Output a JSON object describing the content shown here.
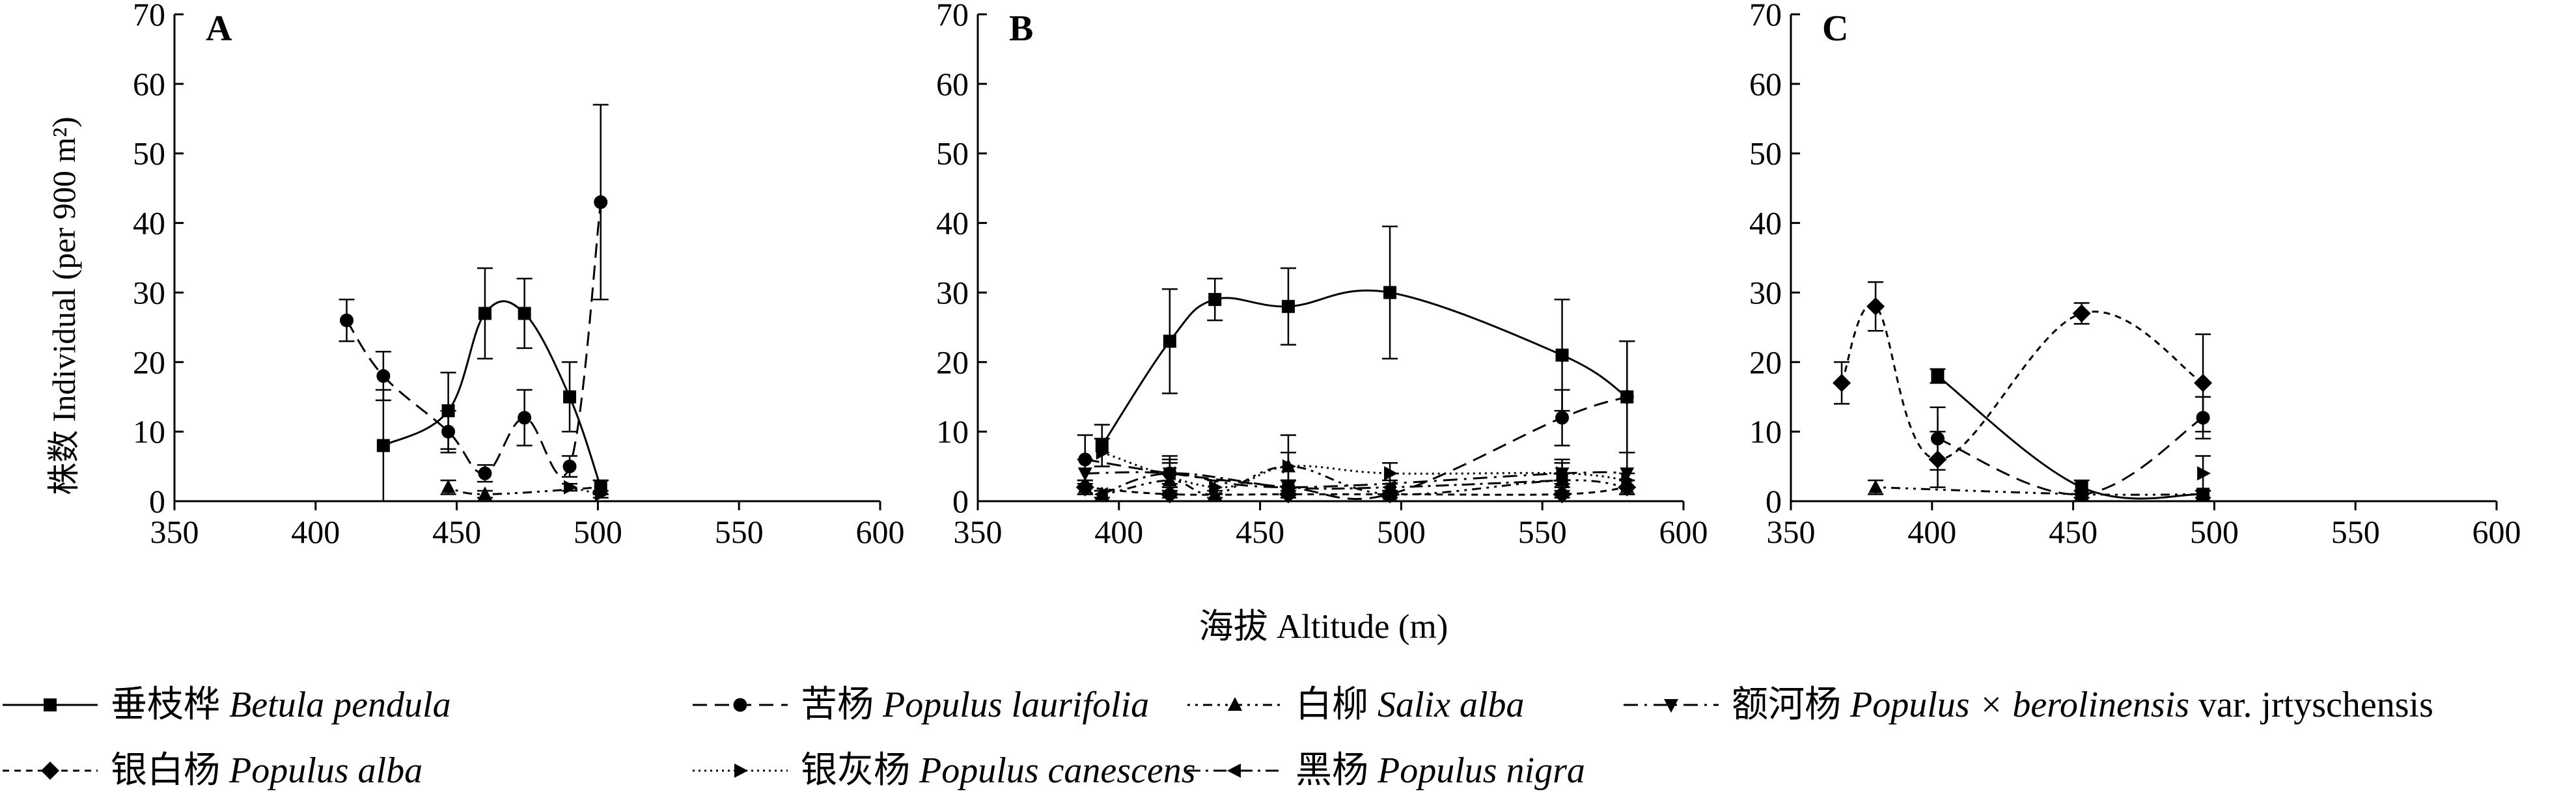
{
  "chart_data": {
    "type": "line",
    "ylabel": "株数 Individual (per 900 m²)",
    "xlabel": "海拔 Altitude (m)",
    "xlim": [
      350,
      600
    ],
    "ylim": [
      0,
      70
    ],
    "xticks": [
      "350",
      "400",
      "450",
      "500",
      "550",
      "600"
    ],
    "yticks": [
      "0",
      "10",
      "20",
      "30",
      "40",
      "50",
      "60",
      "70"
    ],
    "legend_position": "bottom",
    "legend": [
      {
        "key": "betula",
        "cn": "垂枝桦",
        "latin": "Betula pendula",
        "extra": ""
      },
      {
        "key": "laurifolia",
        "cn": "苦杨",
        "latin": "Populus laurifolia",
        "extra": ""
      },
      {
        "key": "salix",
        "cn": "白柳",
        "latin": "Salix alba",
        "extra": ""
      },
      {
        "key": "beroli",
        "cn": "额河杨",
        "latin": "Populus × berolinensis",
        "extra": " var. jrtyschensis"
      },
      {
        "key": "alba",
        "cn": "银白杨",
        "latin": "Populus alba",
        "extra": ""
      },
      {
        "key": "canescens",
        "cn": "银灰杨",
        "latin": "Populus canescens",
        "extra": ""
      },
      {
        "key": "nigra",
        "cn": "黑杨",
        "latin": "Populus nigra",
        "extra": ""
      }
    ],
    "panels": [
      {
        "label": "A",
        "series": [
          {
            "key": "laurifolia",
            "points": [
              [
                411,
                26,
                3
              ],
              [
                424,
                18,
                3.5
              ],
              [
                447,
                10,
                3
              ],
              [
                460,
                4,
                1.2
              ],
              [
                474,
                12,
                4
              ],
              [
                490,
                5,
                1.5
              ],
              [
                501,
                43,
                14
              ]
            ]
          },
          {
            "key": "betula",
            "points": [
              [
                424,
                8,
                8
              ],
              [
                447,
                13,
                5.5
              ],
              [
                460,
                27,
                6.5
              ],
              [
                474,
                27,
                5
              ],
              [
                490,
                15,
                5
              ],
              [
                501,
                2,
                1
              ]
            ]
          },
          {
            "key": "salix",
            "points": [
              [
                447,
                2,
                1
              ],
              [
                460,
                1,
                0.5
              ],
              [
                501,
                2,
                1
              ]
            ]
          },
          {
            "key": "canescens",
            "points": [
              [
                490,
                2,
                0.5
              ],
              [
                501,
                1,
                0.5
              ]
            ]
          }
        ]
      },
      {
        "label": "B",
        "series": [
          {
            "key": "betula",
            "points": [
              [
                394,
                8,
                3
              ],
              [
                418,
                23,
                7.5
              ],
              [
                434,
                29,
                3
              ],
              [
                460,
                28,
                5.5
              ],
              [
                496,
                30,
                9.5
              ],
              [
                557,
                21,
                8
              ],
              [
                580,
                15,
                8
              ]
            ]
          },
          {
            "key": "laurifolia",
            "points": [
              [
                388,
                6,
                3.5
              ],
              [
                418,
                4,
                2
              ],
              [
                460,
                2,
                1
              ],
              [
                496,
                1,
                0.5
              ],
              [
                557,
                12,
                4
              ],
              [
                580,
                15,
                8
              ]
            ]
          },
          {
            "key": "salix",
            "points": [
              [
                388,
                2,
                1
              ],
              [
                394,
                1,
                0.5
              ],
              [
                418,
                3,
                1
              ],
              [
                434,
                1,
                0.5
              ],
              [
                460,
                5,
                4.5
              ],
              [
                496,
                1,
                0.5
              ],
              [
                557,
                3,
                1
              ],
              [
                580,
                2,
                1
              ]
            ]
          },
          {
            "key": "beroli",
            "points": [
              [
                388,
                4,
                2
              ],
              [
                418,
                4,
                2.5
              ],
              [
                460,
                2,
                1
              ],
              [
                557,
                4,
                2
              ],
              [
                580,
                4,
                3
              ]
            ]
          },
          {
            "key": "alba",
            "points": [
              [
                388,
                2,
                1
              ],
              [
                418,
                1,
                0.5
              ],
              [
                460,
                1,
                0.5
              ],
              [
                496,
                1,
                0.5
              ],
              [
                557,
                1,
                0.5
              ],
              [
                580,
                2,
                1
              ]
            ]
          },
          {
            "key": "canescens",
            "points": [
              [
                394,
                7,
                2
              ],
              [
                434,
                2,
                1
              ],
              [
                460,
                5,
                2
              ],
              [
                496,
                4,
                1.5
              ],
              [
                557,
                4,
                1.5
              ],
              [
                580,
                3,
                1
              ]
            ]
          },
          {
            "key": "nigra",
            "points": [
              [
                394,
                1,
                0.5
              ],
              [
                418,
                4,
                1.5
              ],
              [
                460,
                2,
                1
              ],
              [
                496,
                2,
                1
              ],
              [
                557,
                3,
                1
              ]
            ]
          }
        ]
      },
      {
        "label": "C",
        "series": [
          {
            "key": "alba",
            "points": [
              [
                368,
                17,
                3
              ],
              [
                380,
                28,
                3.5
              ],
              [
                402,
                6,
                4
              ],
              [
                453,
                27,
                1.5
              ],
              [
                496,
                17,
                7
              ]
            ]
          },
          {
            "key": "betula",
            "points": [
              [
                402,
                18,
                1
              ],
              [
                453,
                2,
                1
              ],
              [
                496,
                1,
                0.5
              ]
            ]
          },
          {
            "key": "laurifolia",
            "points": [
              [
                402,
                9,
                4.5
              ],
              [
                453,
                1,
                0.5
              ],
              [
                496,
                12,
                3
              ]
            ]
          },
          {
            "key": "salix",
            "points": [
              [
                380,
                2,
                1
              ],
              [
                453,
                1,
                0.5
              ],
              [
                496,
                1,
                0.5
              ]
            ]
          },
          {
            "key": "canescens",
            "points": [
              [
                496,
                4,
                2.5
              ]
            ]
          }
        ]
      }
    ]
  }
}
